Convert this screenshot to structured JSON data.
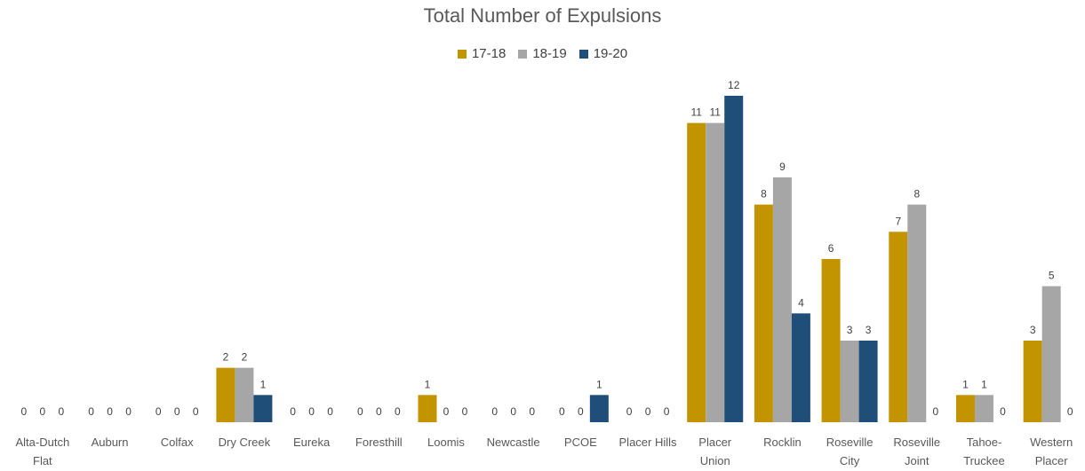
{
  "chart_data": {
    "type": "bar",
    "title": "Total Number of Expulsions",
    "xlabel": "",
    "ylabel": "",
    "ylim": [
      0,
      12
    ],
    "grid": false,
    "legend_placement": "top-center",
    "categories": [
      [
        "Alta-Dutch",
        "Flat"
      ],
      [
        "Auburn"
      ],
      [
        "Colfax"
      ],
      [
        "Dry Creek"
      ],
      [
        "Eureka"
      ],
      [
        "Foresthill"
      ],
      [
        "Loomis"
      ],
      [
        "Newcastle"
      ],
      [
        "PCOE"
      ],
      [
        "Placer Hills"
      ],
      [
        "Placer",
        "Union"
      ],
      [
        "Rocklin"
      ],
      [
        "Roseville",
        "City"
      ],
      [
        "Roseville",
        "Joint"
      ],
      [
        "Tahoe-",
        "Truckee"
      ],
      [
        "Western",
        "Placer"
      ]
    ],
    "series": [
      {
        "name": "17-18",
        "color": "#C29400",
        "values": [
          0,
          0,
          0,
          2,
          0,
          0,
          1,
          0,
          0,
          0,
          11,
          8,
          6,
          7,
          1,
          3
        ]
      },
      {
        "name": "18-19",
        "color": "#A6A6A6",
        "values": [
          0,
          0,
          0,
          2,
          0,
          0,
          0,
          0,
          0,
          0,
          11,
          9,
          3,
          8,
          1,
          5
        ]
      },
      {
        "name": "19-20",
        "color": "#1F4E79",
        "values": [
          0,
          0,
          0,
          1,
          0,
          0,
          0,
          0,
          1,
          0,
          12,
          4,
          3,
          0,
          0,
          0
        ]
      }
    ]
  }
}
